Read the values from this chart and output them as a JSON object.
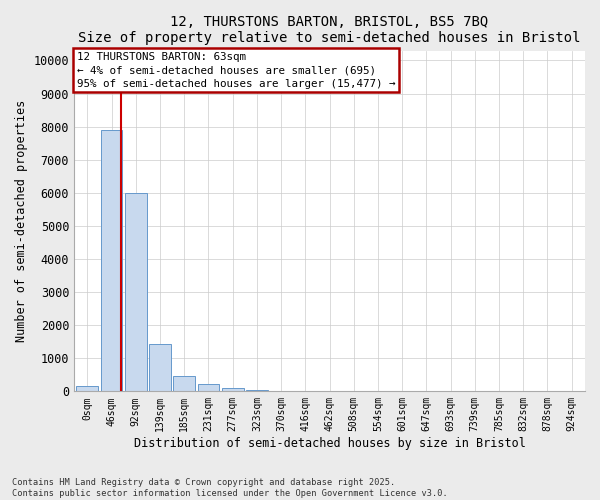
{
  "title1": "12, THURSTONS BARTON, BRISTOL, BS5 7BQ",
  "title2": "Size of property relative to semi-detached houses in Bristol",
  "xlabel": "Distribution of semi-detached houses by size in Bristol",
  "ylabel": "Number of semi-detached properties",
  "bar_values": [
    150,
    7900,
    6000,
    1430,
    470,
    220,
    100,
    45,
    18,
    8,
    4,
    2,
    1,
    1,
    0,
    0,
    0,
    0,
    0,
    0,
    0
  ],
  "bar_labels": [
    "0sqm",
    "46sqm",
    "92sqm",
    "139sqm",
    "185sqm",
    "231sqm",
    "277sqm",
    "323sqm",
    "370sqm",
    "416sqm",
    "462sqm",
    "508sqm",
    "554sqm",
    "601sqm",
    "647sqm",
    "693sqm",
    "739sqm",
    "785sqm",
    "832sqm",
    "878sqm",
    "924sqm"
  ],
  "bar_color": "#c8d9ee",
  "bar_edgecolor": "#6699cc",
  "property_line_x": 1.38,
  "annotation_line1": "12 THURSTONS BARTON: 63sqm",
  "annotation_line2": "← 4% of semi-detached houses are smaller (695)",
  "annotation_line3": "95% of semi-detached houses are larger (15,477) →",
  "annotation_box_color": "#aa0000",
  "ylim": [
    0,
    10300
  ],
  "yticks": [
    0,
    1000,
    2000,
    3000,
    4000,
    5000,
    6000,
    7000,
    8000,
    9000,
    10000
  ],
  "footer1": "Contains HM Land Registry data © Crown copyright and database right 2025.",
  "footer2": "Contains public sector information licensed under the Open Government Licence v3.0.",
  "background_color": "#ebebeb"
}
